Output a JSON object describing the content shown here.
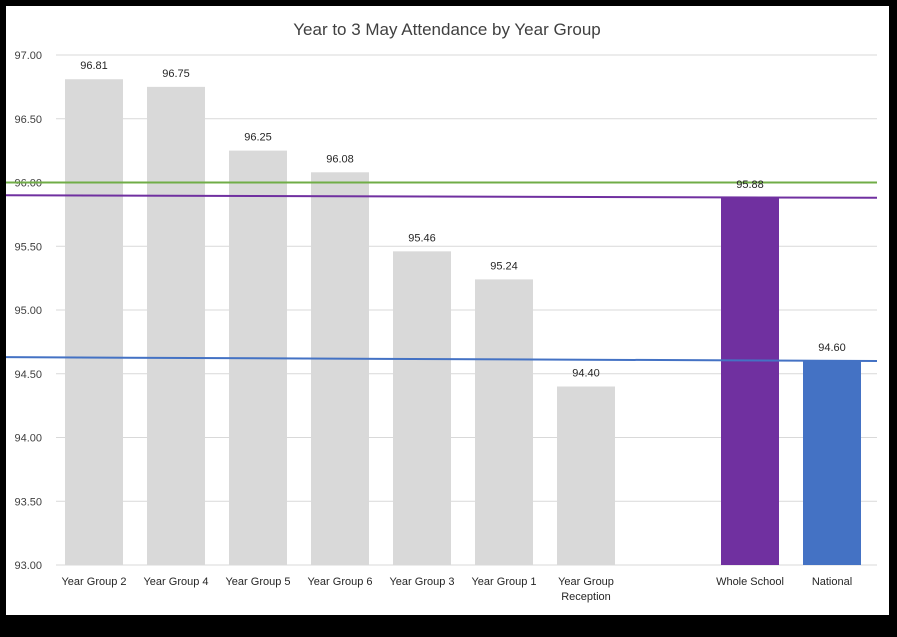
{
  "chart_data": {
    "type": "bar",
    "title": "Year to 3 May Attendance by Year Group",
    "categories": [
      "Year Group 2",
      "Year Group 4",
      "Year Group 5",
      "Year Group 6",
      "Year Group 3",
      "Year Group 1",
      "Year Group Reception",
      "",
      "Whole School",
      "National"
    ],
    "category_lines": [
      [
        "Year Group 2"
      ],
      [
        "Year Group 4"
      ],
      [
        "Year Group 5"
      ],
      [
        "Year Group 6"
      ],
      [
        "Year Group 3"
      ],
      [
        "Year Group 1"
      ],
      [
        "Year Group",
        "Reception"
      ],
      [],
      [
        "Whole School"
      ],
      [
        "National"
      ]
    ],
    "values": [
      96.81,
      96.75,
      96.25,
      96.08,
      95.46,
      95.24,
      94.4,
      null,
      95.88,
      94.6
    ],
    "value_labels": [
      "96.81",
      "96.75",
      "96.25",
      "96.08",
      "95.46",
      "95.24",
      "94.40",
      "",
      "95.88",
      "94.60"
    ],
    "bar_colors": [
      "#d9d9d9",
      "#d9d9d9",
      "#d9d9d9",
      "#d9d9d9",
      "#d9d9d9",
      "#d9d9d9",
      "#d9d9d9",
      "#d9d9d9",
      "#7030a0",
      "#4472c4"
    ],
    "ylim": [
      93.0,
      97.0
    ],
    "yticks": [
      93.0,
      93.5,
      94.0,
      94.5,
      95.0,
      95.5,
      96.0,
      96.5,
      97.0
    ],
    "ytick_labels": [
      "93.00",
      "93.50",
      "94.00",
      "94.50",
      "95.00",
      "95.50",
      "96.00",
      "96.50",
      "97.00"
    ],
    "grid": true,
    "reference_lines": [
      {
        "color": "#70ad47",
        "y_start": 96.0,
        "y_end": 96.0
      },
      {
        "color": "#7030a0",
        "y_start": 95.9,
        "y_end": 95.88
      },
      {
        "color": "#4472c4",
        "y_start": 94.63,
        "y_end": 94.6
      }
    ],
    "legend": "none"
  }
}
